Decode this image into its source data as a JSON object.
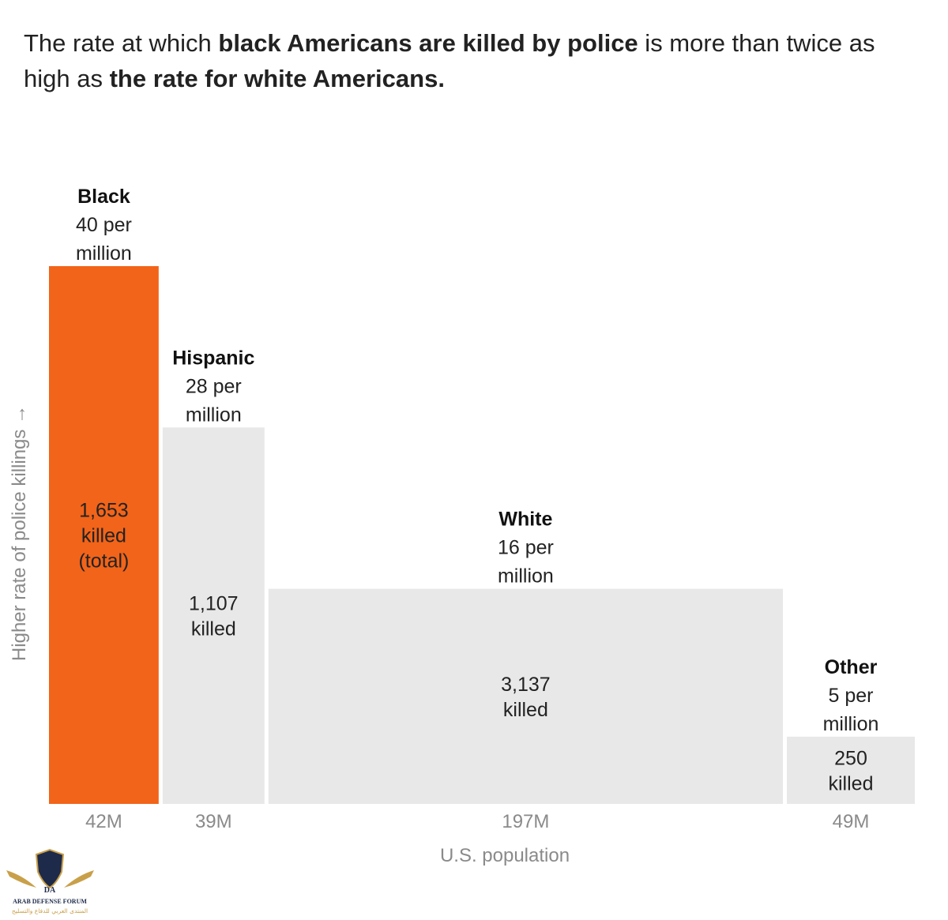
{
  "title": {
    "part1": "The rate at which ",
    "part2": "black Americans are killed by police",
    "part3": " is more than twice as high as ",
    "part4": "the rate for white Americans."
  },
  "chart_data": {
    "type": "bar",
    "variable_width": true,
    "title": "The rate at which black Americans are killed by police is more than twice as high as the rate for white Americans.",
    "xlabel": "U.S. population",
    "ylabel": "Higher rate of police killings →",
    "ylim": [
      0,
      40
    ],
    "categories": [
      "Black",
      "Hispanic",
      "White",
      "Other"
    ],
    "rate_per_million": [
      40,
      28,
      16,
      5
    ],
    "rate_labels": [
      "40 per million",
      "28 per million",
      "16 per million",
      "5 per million"
    ],
    "population_millions": [
      42,
      39,
      197,
      49
    ],
    "population_labels": [
      "42M",
      "39M",
      "197M",
      "49M"
    ],
    "killed": [
      1653,
      1107,
      3137,
      250
    ],
    "killed_labels": [
      [
        "1,653",
        "killed",
        "(total)"
      ],
      [
        "1,107",
        "killed"
      ],
      [
        "3,137",
        "killed"
      ],
      [
        "250",
        "killed"
      ]
    ],
    "colors": [
      "#f26419",
      "#e8e8e8",
      "#e8e8e8",
      "#e8e8e8"
    ]
  },
  "watermark": {
    "name": "ARAB DEFENSE FORUM",
    "initials": "DA",
    "arabic": "المنتدى العربي للدفاع والتسليح"
  }
}
